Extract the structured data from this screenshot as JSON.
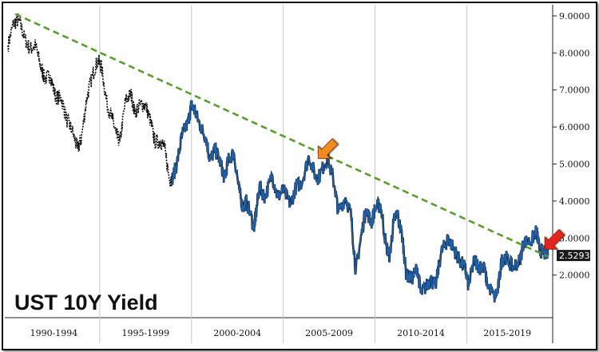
{
  "chart_data": {
    "type": "line",
    "title": "UST 10Y Yield",
    "xlabel": "",
    "ylabel": "",
    "x_range": [
      1990.0,
      2019.42
    ],
    "ylim": [
      0.85,
      9.3
    ],
    "y_ticks": [
      "2.0000",
      "3.0000",
      "4.0000",
      "5.0000",
      "6.0000",
      "7.0000",
      "8.0000",
      "9.0000"
    ],
    "x_tick_labels": [
      "1990-1994",
      "1995-1999",
      "2000-2004",
      "2005-2009",
      "2010-2014",
      "2015-2019"
    ],
    "last_value_label": "2.5293",
    "grid": "vertical separators only",
    "series": [
      {
        "color": "#111111",
        "points": [
          [
            1990.0,
            8.2
          ],
          [
            1990.3,
            8.8
          ],
          [
            1990.6,
            8.9
          ],
          [
            1990.9,
            8.4
          ],
          [
            1991.2,
            8.1
          ],
          [
            1991.5,
            8.2
          ],
          [
            1991.8,
            7.6
          ],
          [
            1992.0,
            7.3
          ],
          [
            1992.3,
            7.4
          ],
          [
            1992.6,
            6.8
          ],
          [
            1992.9,
            6.8
          ],
          [
            1993.2,
            6.2
          ],
          [
            1993.5,
            5.9
          ],
          [
            1993.8,
            5.4
          ],
          [
            1994.0,
            5.7
          ],
          [
            1994.3,
            6.8
          ],
          [
            1994.6,
            7.4
          ],
          [
            1994.9,
            7.8
          ],
          [
            1995.1,
            7.6
          ],
          [
            1995.4,
            6.6
          ],
          [
            1995.7,
            6.2
          ],
          [
            1995.9,
            5.8
          ],
          [
            1996.1,
            5.6
          ],
          [
            1996.4,
            6.7
          ],
          [
            1996.7,
            6.9
          ],
          [
            1996.9,
            6.4
          ],
          [
            1997.2,
            6.6
          ],
          [
            1997.5,
            6.6
          ],
          [
            1997.8,
            6.1
          ],
          [
            1998.0,
            5.6
          ],
          [
            1998.3,
            5.6
          ],
          [
            1998.5,
            5.5
          ],
          [
            1998.8,
            4.6
          ],
          [
            1998.95,
            4.6
          ]
        ]
      },
      {
        "color": "#1f5fa8",
        "points": [
          [
            1998.95,
            4.6
          ],
          [
            1999.2,
            5.0
          ],
          [
            1999.5,
            5.8
          ],
          [
            1999.8,
            6.1
          ],
          [
            2000.0,
            6.6
          ],
          [
            2000.2,
            6.4
          ],
          [
            2000.5,
            6.0
          ],
          [
            2000.8,
            5.7
          ],
          [
            2001.0,
            5.1
          ],
          [
            2001.3,
            5.4
          ],
          [
            2001.6,
            5.0
          ],
          [
            2001.8,
            4.6
          ],
          [
            2002.0,
            5.1
          ],
          [
            2002.3,
            5.3
          ],
          [
            2002.6,
            4.3
          ],
          [
            2002.8,
            3.8
          ],
          [
            2003.0,
            4.0
          ],
          [
            2003.4,
            3.3
          ],
          [
            2003.5,
            3.6
          ],
          [
            2003.7,
            4.4
          ],
          [
            2004.0,
            4.1
          ],
          [
            2004.4,
            4.7
          ],
          [
            2004.7,
            4.1
          ],
          [
            2005.0,
            4.3
          ],
          [
            2005.4,
            3.9
          ],
          [
            2005.7,
            4.4
          ],
          [
            2006.0,
            4.5
          ],
          [
            2006.4,
            5.2
          ],
          [
            2006.8,
            4.6
          ],
          [
            2007.0,
            4.7
          ],
          [
            2007.4,
            5.2
          ],
          [
            2007.8,
            4.4
          ],
          [
            2008.0,
            3.7
          ],
          [
            2008.4,
            4.1
          ],
          [
            2008.7,
            3.6
          ],
          [
            2008.95,
            2.1
          ],
          [
            2009.2,
            2.9
          ],
          [
            2009.5,
            3.8
          ],
          [
            2009.8,
            3.4
          ],
          [
            2010.0,
            3.8
          ],
          [
            2010.3,
            3.9
          ],
          [
            2010.6,
            2.8
          ],
          [
            2010.8,
            2.5
          ],
          [
            2011.0,
            3.4
          ],
          [
            2011.2,
            3.7
          ],
          [
            2011.5,
            3.0
          ],
          [
            2011.7,
            2.0
          ],
          [
            2012.0,
            1.9
          ],
          [
            2012.3,
            2.2
          ],
          [
            2012.5,
            1.5
          ],
          [
            2012.8,
            1.7
          ],
          [
            2013.0,
            1.9
          ],
          [
            2013.3,
            1.7
          ],
          [
            2013.6,
            2.6
          ],
          [
            2013.9,
            2.9
          ],
          [
            2014.0,
            3.0
          ],
          [
            2014.3,
            2.7
          ],
          [
            2014.6,
            2.4
          ],
          [
            2014.9,
            2.2
          ],
          [
            2015.1,
            1.7
          ],
          [
            2015.4,
            2.4
          ],
          [
            2015.7,
            2.2
          ],
          [
            2015.9,
            2.3
          ],
          [
            2016.1,
            1.8
          ],
          [
            2016.5,
            1.4
          ],
          [
            2016.7,
            1.6
          ],
          [
            2016.9,
            2.4
          ],
          [
            2017.1,
            2.5
          ],
          [
            2017.5,
            2.2
          ],
          [
            2017.9,
            2.4
          ],
          [
            2018.1,
            2.9
          ],
          [
            2018.5,
            2.9
          ],
          [
            2018.8,
            3.2
          ],
          [
            2018.95,
            2.7
          ],
          [
            2019.2,
            2.6
          ],
          [
            2019.42,
            2.53
          ]
        ]
      }
    ],
    "trendline": {
      "color": "#5a9e2a",
      "style": "dashed",
      "points": [
        [
          1990.4,
          9.05
        ],
        [
          2019.42,
          2.5
        ]
      ]
    },
    "annotations": [
      {
        "type": "arrow",
        "color": "#f28a1e",
        "x": 2006.9,
        "y": 5.15
      },
      {
        "type": "arrow",
        "color": "#e8231e",
        "x": 2019.25,
        "y": 2.7
      }
    ]
  }
}
